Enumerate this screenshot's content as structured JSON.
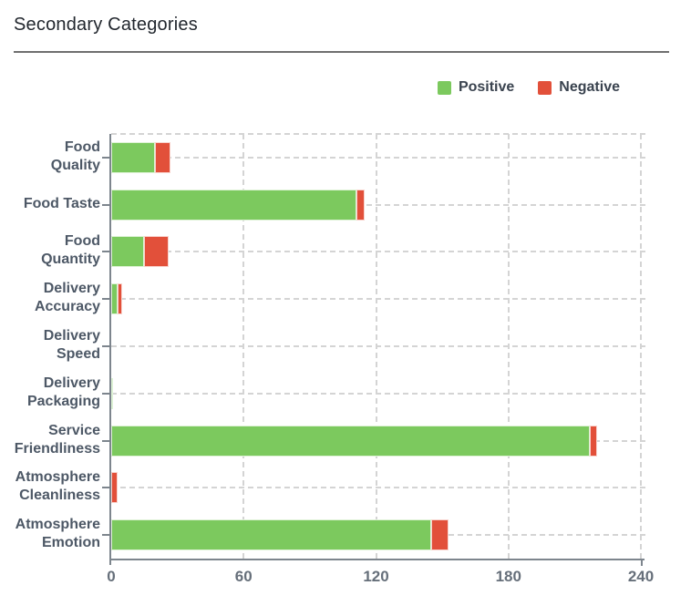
{
  "header": {
    "title": "Secondary Categories"
  },
  "colors": {
    "positive": "#7cc95e",
    "negative": "#e2503a",
    "axis": "#7d858d",
    "gridline": "#d4d4d4",
    "title_text": "#22272e",
    "category_text": "#4d5866",
    "tick_text": "#666f7a",
    "legend_text": "#3a434f",
    "divider": "#6f6f6f",
    "background": "#ffffff"
  },
  "chart_data": {
    "type": "bar",
    "orientation": "horizontal",
    "stacked": true,
    "title": "Secondary Categories",
    "categories": [
      "Food Quality",
      "Food Taste",
      "Food Quantity",
      "Delivery Accuracy",
      "Delivery Speed",
      "Delivery Packaging",
      "Service Friendliness",
      "Atmosphere Cleanliness",
      "Atmosphere Emotion"
    ],
    "category_lines": [
      [
        "Food",
        "Quality"
      ],
      [
        "Food Taste"
      ],
      [
        "Food",
        "Quantity"
      ],
      [
        "Delivery",
        "Accuracy"
      ],
      [
        "Delivery",
        "Speed"
      ],
      [
        "Delivery",
        "Packaging"
      ],
      [
        "Service",
        "Friendliness"
      ],
      [
        "Atmosphere",
        "Cleanliness"
      ],
      [
        "Atmosphere",
        "Emotion"
      ]
    ],
    "series": [
      {
        "name": "Positive",
        "color": "#7cc95e",
        "values": [
          20,
          111,
          15,
          3,
          0,
          1,
          217,
          0,
          145
        ]
      },
      {
        "name": "Negative",
        "color": "#e2503a",
        "values": [
          7,
          4,
          11,
          2,
          0,
          0,
          3,
          3,
          8
        ]
      }
    ],
    "xlabel": "",
    "ylabel": "",
    "x_ticks": [
      0,
      60,
      120,
      180,
      240
    ],
    "xlim": [
      0,
      240
    ],
    "grid": "dashed",
    "legend_position": "top-right"
  }
}
